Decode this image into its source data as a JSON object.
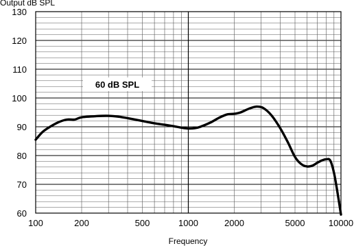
{
  "chart_data": {
    "type": "line",
    "ylabel": "Output dB SPL",
    "xlabel": "Frequency",
    "x_scale": "log",
    "xlim": [
      100,
      10000
    ],
    "ylim": [
      60,
      130
    ],
    "grid": true,
    "x_ticks": [
      100,
      200,
      500,
      1000,
      2000,
      5000,
      10000
    ],
    "x_tick_labels": [
      "100",
      "200",
      "500",
      "1000",
      "2000",
      "5000",
      "10000"
    ],
    "y_ticks": [
      60,
      70,
      80,
      90,
      100,
      110,
      120,
      130
    ],
    "y_tick_labels": [
      "60",
      "70",
      "80",
      "90",
      "100",
      "110",
      "120",
      "130"
    ],
    "annotation": "60 dB SPL",
    "series": [
      {
        "color": "#000000",
        "points": [
          [
            100,
            85.5
          ],
          [
            110,
            88
          ],
          [
            120,
            89.5
          ],
          [
            140,
            91.5
          ],
          [
            160,
            92.5
          ],
          [
            180,
            92.5
          ],
          [
            200,
            93.3
          ],
          [
            250,
            93.7
          ],
          [
            300,
            93.8
          ],
          [
            350,
            93.5
          ],
          [
            400,
            93.0
          ],
          [
            500,
            92.0
          ],
          [
            600,
            91.2
          ],
          [
            700,
            90.7
          ],
          [
            800,
            90.2
          ],
          [
            900,
            89.7
          ],
          [
            1000,
            89.4
          ],
          [
            1100,
            89.5
          ],
          [
            1200,
            90.0
          ],
          [
            1400,
            91.5
          ],
          [
            1600,
            93.2
          ],
          [
            1800,
            94.3
          ],
          [
            2000,
            94.5
          ],
          [
            2200,
            95.0
          ],
          [
            2500,
            96.3
          ],
          [
            2800,
            97.0
          ],
          [
            3100,
            96.5
          ],
          [
            3500,
            94.0
          ],
          [
            4000,
            89.5
          ],
          [
            4500,
            84.5
          ],
          [
            5000,
            79.5
          ],
          [
            5500,
            77.0
          ],
          [
            6000,
            76.2
          ],
          [
            6500,
            76.5
          ],
          [
            7000,
            77.5
          ],
          [
            7500,
            78.3
          ],
          [
            8000,
            78.7
          ],
          [
            8500,
            78.3
          ],
          [
            9000,
            74.0
          ],
          [
            9500,
            67.0
          ],
          [
            10000,
            59.5
          ]
        ]
      }
    ]
  }
}
